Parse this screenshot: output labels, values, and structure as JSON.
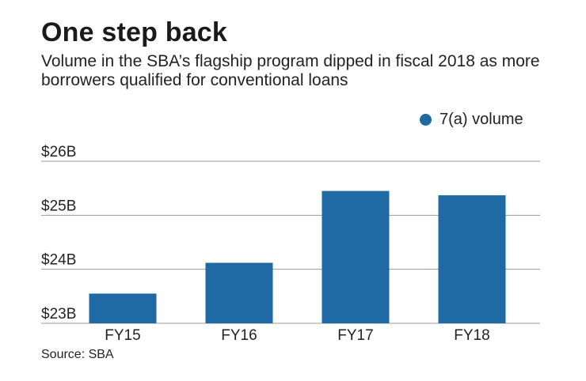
{
  "title": "One step back",
  "subtitle": "Volume in the SBA’s flagship program dipped in fiscal 2018 as more borrowers qualified for conventional loans",
  "source": "Source: SBA",
  "colors": {
    "bar": "#1f6aa5",
    "grid": "#9a9a9a"
  },
  "chart_data": {
    "type": "bar",
    "title": "One step back",
    "subtitle": "Volume in the SBA’s flagship program dipped in fiscal 2018 as more borrowers qualified for conventional loans",
    "categories": [
      "FY15",
      "FY16",
      "FY17",
      "FY18"
    ],
    "series": [
      {
        "name": "7(a) volume",
        "values": [
          23.55,
          24.12,
          25.45,
          25.37
        ]
      }
    ],
    "ylim": [
      23,
      26
    ],
    "yticks": [
      23,
      24,
      25,
      26
    ],
    "ytick_labels": [
      "$23B",
      "$24B",
      "$25B",
      "$26B"
    ],
    "xlabel": "",
    "ylabel": "",
    "units": "billions of dollars",
    "grid": true,
    "legend": "top-right"
  }
}
